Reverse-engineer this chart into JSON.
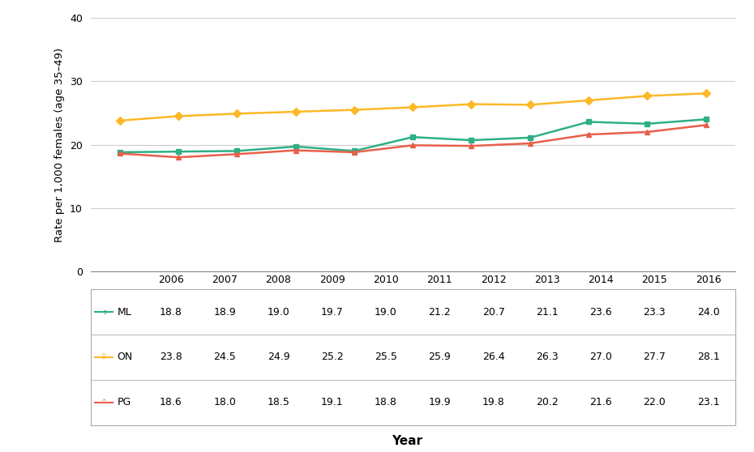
{
  "years": [
    2006,
    2007,
    2008,
    2009,
    2010,
    2011,
    2012,
    2013,
    2014,
    2015,
    2016
  ],
  "ML": [
    18.8,
    18.9,
    19.0,
    19.7,
    19.0,
    21.2,
    20.7,
    21.1,
    23.6,
    23.3,
    24.0
  ],
  "ON": [
    23.8,
    24.5,
    24.9,
    25.2,
    25.5,
    25.9,
    26.4,
    26.3,
    27.0,
    27.7,
    28.1
  ],
  "PG": [
    18.6,
    18.0,
    18.5,
    19.1,
    18.8,
    19.9,
    19.8,
    20.2,
    21.6,
    22.0,
    23.1
  ],
  "ML_color": "#2EAF86",
  "ON_color": "#FDB827",
  "PG_color": "#E8604A",
  "ylabel": "Rate per 1,000 females (age 35–49)",
  "xlabel": "Year",
  "ylim": [
    0,
    40
  ],
  "yticks": [
    0,
    10,
    20,
    30,
    40
  ],
  "background_color": "#ffffff",
  "grid_color": "#cccccc",
  "ML_label": "ML",
  "ON_label": "ON",
  "PG_label": "PG",
  "ML_marker": "s",
  "ON_marker": "D",
  "PG_marker": "^",
  "table_border_color": "#aaaaaa"
}
